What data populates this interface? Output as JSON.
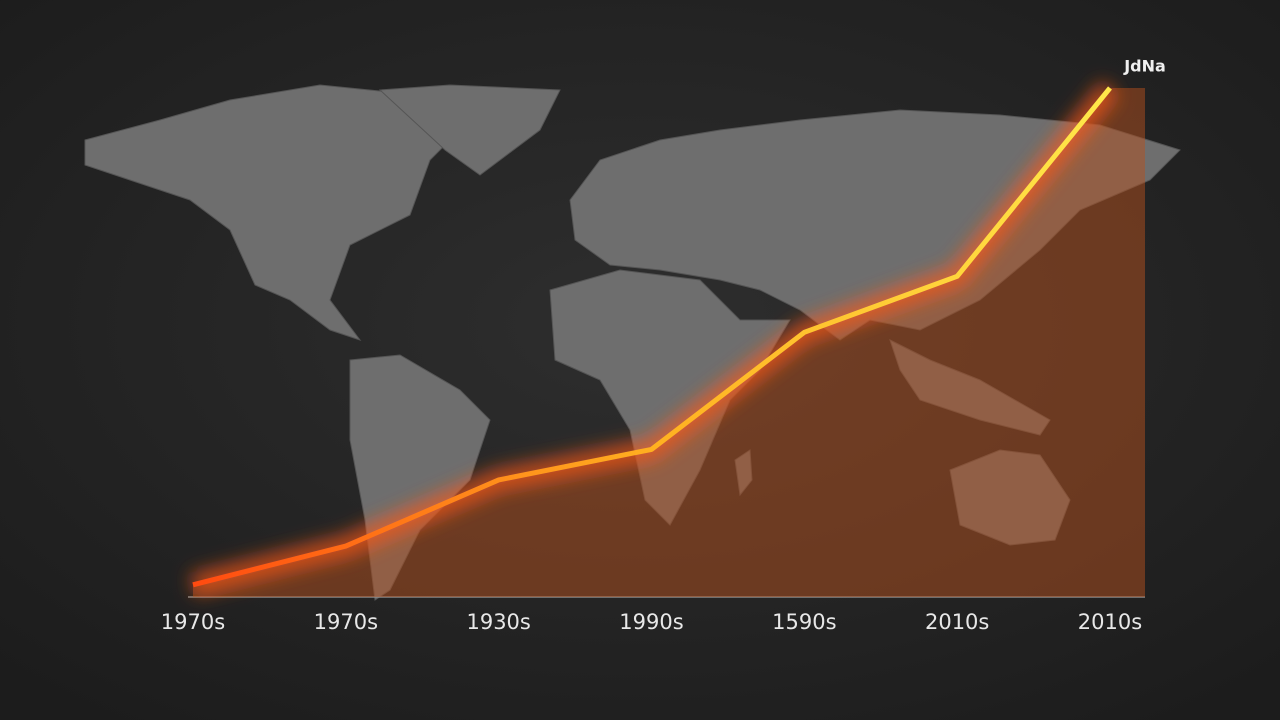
{
  "chart_data": {
    "type": "area",
    "annotation": "JdNa",
    "categories": [
      "1970s",
      "1970s",
      "1930s",
      "1990s",
      "1590s",
      "2010s",
      "2010s"
    ],
    "values": [
      2.4,
      10,
      23,
      29,
      52,
      63,
      100
    ],
    "color": "#ff8a1a",
    "fill": "#b4501e"
  }
}
